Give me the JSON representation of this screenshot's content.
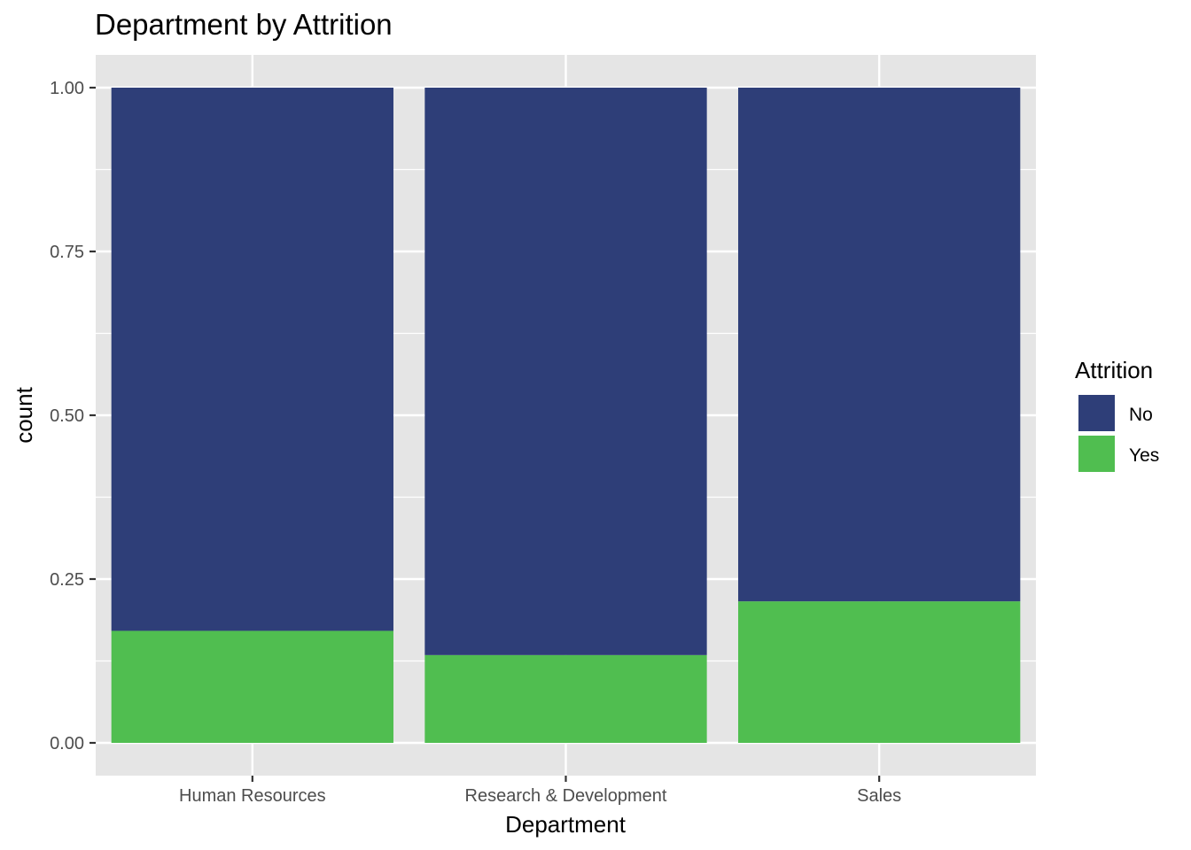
{
  "chart_data": {
    "type": "bar",
    "stacked": true,
    "title": "Department by Attrition",
    "xlabel": "Department",
    "ylabel": "count",
    "categories": [
      "Human Resources",
      "Research & Development",
      "Sales"
    ],
    "series": [
      {
        "name": "No",
        "values": [
          0.829,
          0.866,
          0.784
        ]
      },
      {
        "name": "Yes",
        "values": [
          0.171,
          0.134,
          0.216
        ]
      }
    ],
    "ylim": [
      -0.05,
      1.05
    ],
    "yticks": [
      0.0,
      0.25,
      0.5,
      0.75,
      1.0
    ],
    "ytick_labels": [
      "0.00",
      "0.25",
      "0.50",
      "0.75",
      "1.00"
    ],
    "grid": true,
    "legend": {
      "title": "Attrition",
      "position": "right"
    },
    "colors": {
      "No": "#2e3e78",
      "Yes": "#50be50",
      "panel": "#e5e5e5",
      "grid": "#ffffff"
    }
  }
}
